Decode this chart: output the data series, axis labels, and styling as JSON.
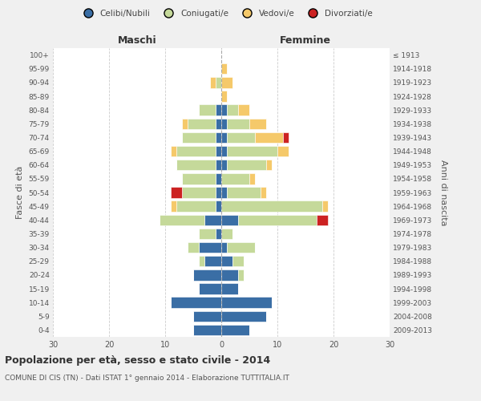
{
  "age_groups": [
    "0-4",
    "5-9",
    "10-14",
    "15-19",
    "20-24",
    "25-29",
    "30-34",
    "35-39",
    "40-44",
    "45-49",
    "50-54",
    "55-59",
    "60-64",
    "65-69",
    "70-74",
    "75-79",
    "80-84",
    "85-89",
    "90-94",
    "95-99",
    "100+"
  ],
  "birth_years": [
    "2009-2013",
    "2004-2008",
    "1999-2003",
    "1994-1998",
    "1989-1993",
    "1984-1988",
    "1979-1983",
    "1974-1978",
    "1969-1973",
    "1964-1968",
    "1959-1963",
    "1954-1958",
    "1949-1953",
    "1944-1948",
    "1939-1943",
    "1934-1938",
    "1929-1933",
    "1924-1928",
    "1919-1923",
    "1914-1918",
    "≤ 1913"
  ],
  "maschi": {
    "celibi": [
      5,
      5,
      9,
      4,
      5,
      3,
      4,
      1,
      3,
      1,
      1,
      1,
      1,
      1,
      1,
      1,
      1,
      0,
      0,
      0,
      0
    ],
    "coniugati": [
      0,
      0,
      0,
      0,
      0,
      1,
      2,
      3,
      8,
      7,
      6,
      6,
      7,
      7,
      6,
      5,
      3,
      0,
      1,
      0,
      0
    ],
    "vedovi": [
      0,
      0,
      0,
      0,
      0,
      0,
      0,
      0,
      0,
      1,
      0,
      0,
      0,
      1,
      0,
      1,
      0,
      0,
      1,
      0,
      0
    ],
    "divorziati": [
      0,
      0,
      0,
      0,
      0,
      0,
      0,
      0,
      0,
      0,
      2,
      0,
      0,
      0,
      0,
      0,
      0,
      0,
      0,
      0,
      0
    ]
  },
  "femmine": {
    "nubili": [
      5,
      8,
      9,
      3,
      3,
      2,
      1,
      0,
      3,
      0,
      1,
      0,
      1,
      1,
      1,
      1,
      1,
      0,
      0,
      0,
      0
    ],
    "coniugate": [
      0,
      0,
      0,
      0,
      1,
      2,
      5,
      2,
      14,
      18,
      6,
      5,
      7,
      9,
      5,
      4,
      2,
      0,
      0,
      0,
      0
    ],
    "vedove": [
      0,
      0,
      0,
      0,
      0,
      0,
      0,
      0,
      0,
      1,
      1,
      1,
      1,
      2,
      5,
      3,
      2,
      1,
      2,
      1,
      0
    ],
    "divorziate": [
      0,
      0,
      0,
      0,
      0,
      0,
      0,
      0,
      2,
      0,
      0,
      0,
      0,
      0,
      1,
      0,
      0,
      0,
      0,
      0,
      0
    ]
  },
  "colors": {
    "celibi": "#3a6ea5",
    "coniugati": "#c5d99a",
    "vedovi": "#f5c96a",
    "divorziati": "#cc2222"
  },
  "xlim": 30,
  "title": "Popolazione per età, sesso e stato civile - 2014",
  "subtitle": "COMUNE DI CIS (TN) - Dati ISTAT 1° gennaio 2014 - Elaborazione TUTTITALIA.IT",
  "xlabel_left": "Maschi",
  "xlabel_right": "Femmine",
  "ylabel_left": "Fasce di età",
  "ylabel_right": "Anni di nascita",
  "bg_color": "#f0f0f0",
  "plot_bg": "#ffffff"
}
